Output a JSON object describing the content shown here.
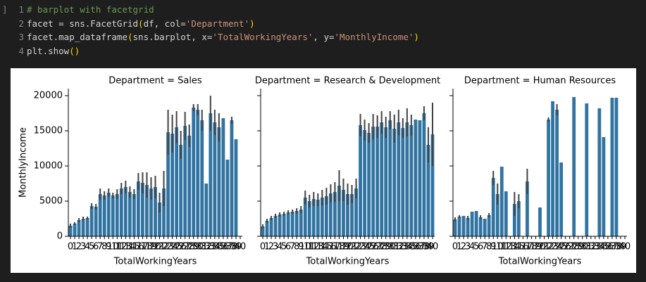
{
  "code_lines": [
    "# barplot with facetgrid",
    "facet = sns.FacetGrid(df, col='Department')",
    "facet.map_dataframe(sns.barplot, x='TotalWorkingYears', y='MonthlyIncome')",
    "plt.show()"
  ],
  "line_numbers": [
    "1",
    "2",
    "3",
    "4"
  ],
  "cell_indicator": "]",
  "chart_data": [
    {
      "type": "bar",
      "title": "Department = Sales",
      "xlabel": "TotalWorkingYears",
      "ylabel": "MonthlyIncome",
      "color": "#3274a1",
      "error_color": "#424242",
      "categories": [
        0,
        1,
        2,
        3,
        4,
        5,
        6,
        7,
        8,
        9,
        10,
        11,
        12,
        13,
        14,
        15,
        16,
        17,
        18,
        19,
        20,
        21,
        22,
        23,
        24,
        25,
        26,
        27,
        28,
        29,
        30,
        31,
        32,
        33,
        34,
        35,
        36,
        37,
        38,
        39,
        40
      ],
      "values": [
        1500,
        1800,
        2300,
        2500,
        2600,
        4300,
        4200,
        6000,
        5800,
        6200,
        5800,
        6000,
        6800,
        7000,
        6300,
        6000,
        7800,
        7600,
        7300,
        6800,
        7000,
        4800,
        6800,
        14800,
        14600,
        15500,
        13000,
        15700,
        14300,
        18300,
        18000,
        16500,
        7500,
        17500,
        16200,
        15500,
        16800,
        10900,
        16500,
        13800,
        null
      ],
      "errors": [
        300,
        200,
        300,
        300,
        200,
        400,
        400,
        800,
        600,
        600,
        400,
        700,
        800,
        900,
        800,
        700,
        1200,
        1500,
        1800,
        1600,
        1600,
        1400,
        2500,
        3200,
        2700,
        2300,
        2000,
        2000,
        1600,
        500,
        800,
        1500,
        null,
        2500,
        1800,
        2000,
        null,
        null,
        500,
        null,
        null
      ],
      "ylim": [
        0,
        21000
      ],
      "yticks": [
        0,
        5000,
        10000,
        15000,
        20000
      ]
    },
    {
      "type": "bar",
      "title": "Department = Research & Development",
      "xlabel": "TotalWorkingYears",
      "color": "#3274a1",
      "error_color": "#424242",
      "categories": [
        0,
        1,
        2,
        3,
        4,
        5,
        6,
        7,
        8,
        9,
        10,
        11,
        12,
        13,
        14,
        15,
        16,
        17,
        18,
        19,
        20,
        21,
        22,
        23,
        24,
        25,
        26,
        27,
        28,
        29,
        30,
        31,
        32,
        33,
        34,
        35,
        36,
        37,
        38,
        39,
        40
      ],
      "values": [
        1400,
        2200,
        2600,
        2900,
        3100,
        3200,
        3400,
        3500,
        3600,
        3800,
        5500,
        5000,
        5300,
        5200,
        5500,
        5700,
        6100,
        6300,
        7200,
        6600,
        6000,
        6000,
        6800,
        15800,
        15100,
        14700,
        15600,
        15600,
        16200,
        15500,
        16500,
        15300,
        16200,
        15400,
        16200,
        15800,
        16600,
        16500,
        17500,
        13000,
        14500
      ],
      "errors": [
        300,
        300,
        300,
        300,
        300,
        300,
        300,
        300,
        400,
        500,
        1000,
        900,
        1000,
        900,
        1100,
        1200,
        1300,
        1400,
        2200,
        1600,
        1500,
        1300,
        1400,
        1600,
        1500,
        1400,
        1800,
        1600,
        1600,
        1500,
        1300,
        2000,
        1800,
        1400,
        2000,
        1500,
        null,
        null,
        1000,
        2500,
        4500
      ],
      "ylim": [
        0,
        21000
      ],
      "yticks": [
        0,
        5000,
        10000,
        15000,
        20000
      ]
    },
    {
      "type": "bar",
      "title": "Department = Human Resources",
      "xlabel": "TotalWorkingYears",
      "color": "#3274a1",
      "error_color": "#424242",
      "categories": [
        0,
        1,
        2,
        3,
        4,
        5,
        6,
        7,
        8,
        9,
        10,
        11,
        12,
        13,
        14,
        15,
        16,
        17,
        18,
        19,
        20,
        21,
        22,
        23,
        24,
        25,
        26,
        27,
        28,
        29,
        30,
        31,
        32,
        33,
        34,
        35,
        36,
        37,
        38,
        39,
        40
      ],
      "values": [
        2400,
        2800,
        2900,
        2600,
        3500,
        3600,
        2700,
        2500,
        3000,
        8300,
        6000,
        9900,
        6400,
        null,
        4600,
        5000,
        null,
        7800,
        null,
        null,
        4100,
        null,
        16600,
        19200,
        18000,
        10500,
        null,
        null,
        19800,
        null,
        null,
        18900,
        null,
        null,
        18200,
        14100,
        null,
        19700,
        19700,
        null,
        null
      ],
      "errors": [
        300,
        200,
        null,
        300,
        null,
        null,
        300,
        null,
        300,
        1000,
        1500,
        null,
        null,
        null,
        1700,
        1000,
        null,
        1800,
        null,
        null,
        null,
        null,
        300,
        null,
        800,
        null,
        null,
        null,
        null,
        null,
        null,
        null,
        null,
        null,
        null,
        null,
        null,
        null,
        null,
        null,
        null
      ],
      "ylim": [
        0,
        21000
      ],
      "yticks": [
        0,
        5000,
        10000,
        15000,
        20000
      ]
    }
  ]
}
